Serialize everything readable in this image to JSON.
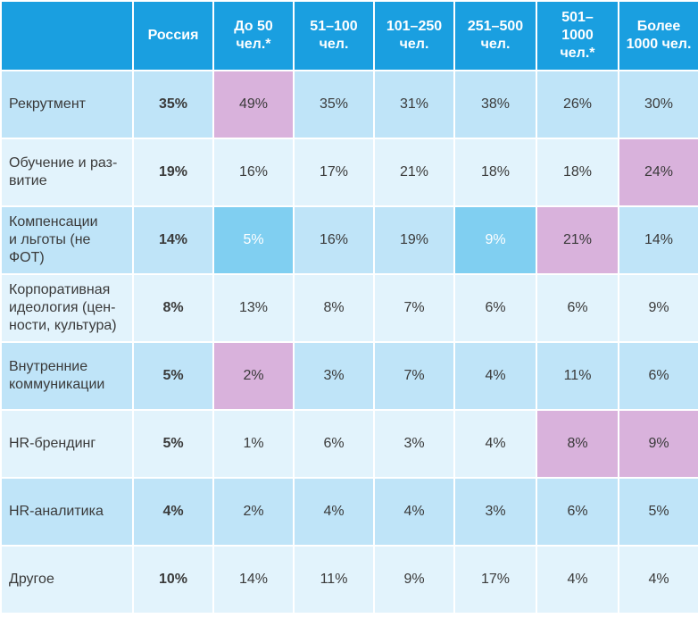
{
  "table": {
    "header": [
      "",
      "Россия",
      "До 50\nчел.*",
      "51–100\nчел.",
      "101–250\nчел.",
      "251–500\nчел.",
      "501–\n1000\nчел.*",
      "Более\n1000 чел."
    ],
    "rows": [
      [
        "Рекрутмент",
        "35%",
        "49%",
        "35%",
        "31%",
        "38%",
        "26%",
        "30%"
      ],
      [
        "Обучение и раз-\nвитие",
        "19%",
        "16%",
        "17%",
        "21%",
        "18%",
        "18%",
        "24%"
      ],
      [
        "Компенсации\nи льготы (не\nФОТ)",
        "14%",
        "5%",
        "16%",
        "19%",
        "9%",
        "21%",
        "14%"
      ],
      [
        "Корпоративная\nидеология (цен-\nности, культура)",
        "8%",
        "13%",
        "8%",
        "7%",
        "6%",
        "6%",
        "9%"
      ],
      [
        "Внутренние\nкоммуникации",
        "5%",
        "2%",
        "3%",
        "7%",
        "4%",
        "11%",
        "6%"
      ],
      [
        "HR-брендинг",
        "5%",
        "1%",
        "6%",
        "3%",
        "4%",
        "8%",
        "9%"
      ],
      [
        "HR-аналитика",
        "4%",
        "2%",
        "4%",
        "4%",
        "3%",
        "6%",
        "5%"
      ],
      [
        "Другое",
        "10%",
        "14%",
        "11%",
        "9%",
        "17%",
        "4%",
        "4%"
      ]
    ],
    "colors": {
      "header": "#1a9fe0",
      "odd": "#bfe4f8",
      "even": "#e2f3fc",
      "pink": "#d9b2dc",
      "blue": "#80cff1"
    },
    "highlights": [
      [
        0,
        2,
        "pink"
      ],
      [
        1,
        7,
        "pink"
      ],
      [
        2,
        2,
        "blue"
      ],
      [
        2,
        5,
        "blue"
      ],
      [
        2,
        6,
        "pink"
      ],
      [
        4,
        2,
        "pink"
      ],
      [
        5,
        6,
        "pink"
      ],
      [
        5,
        7,
        "pink"
      ]
    ]
  }
}
